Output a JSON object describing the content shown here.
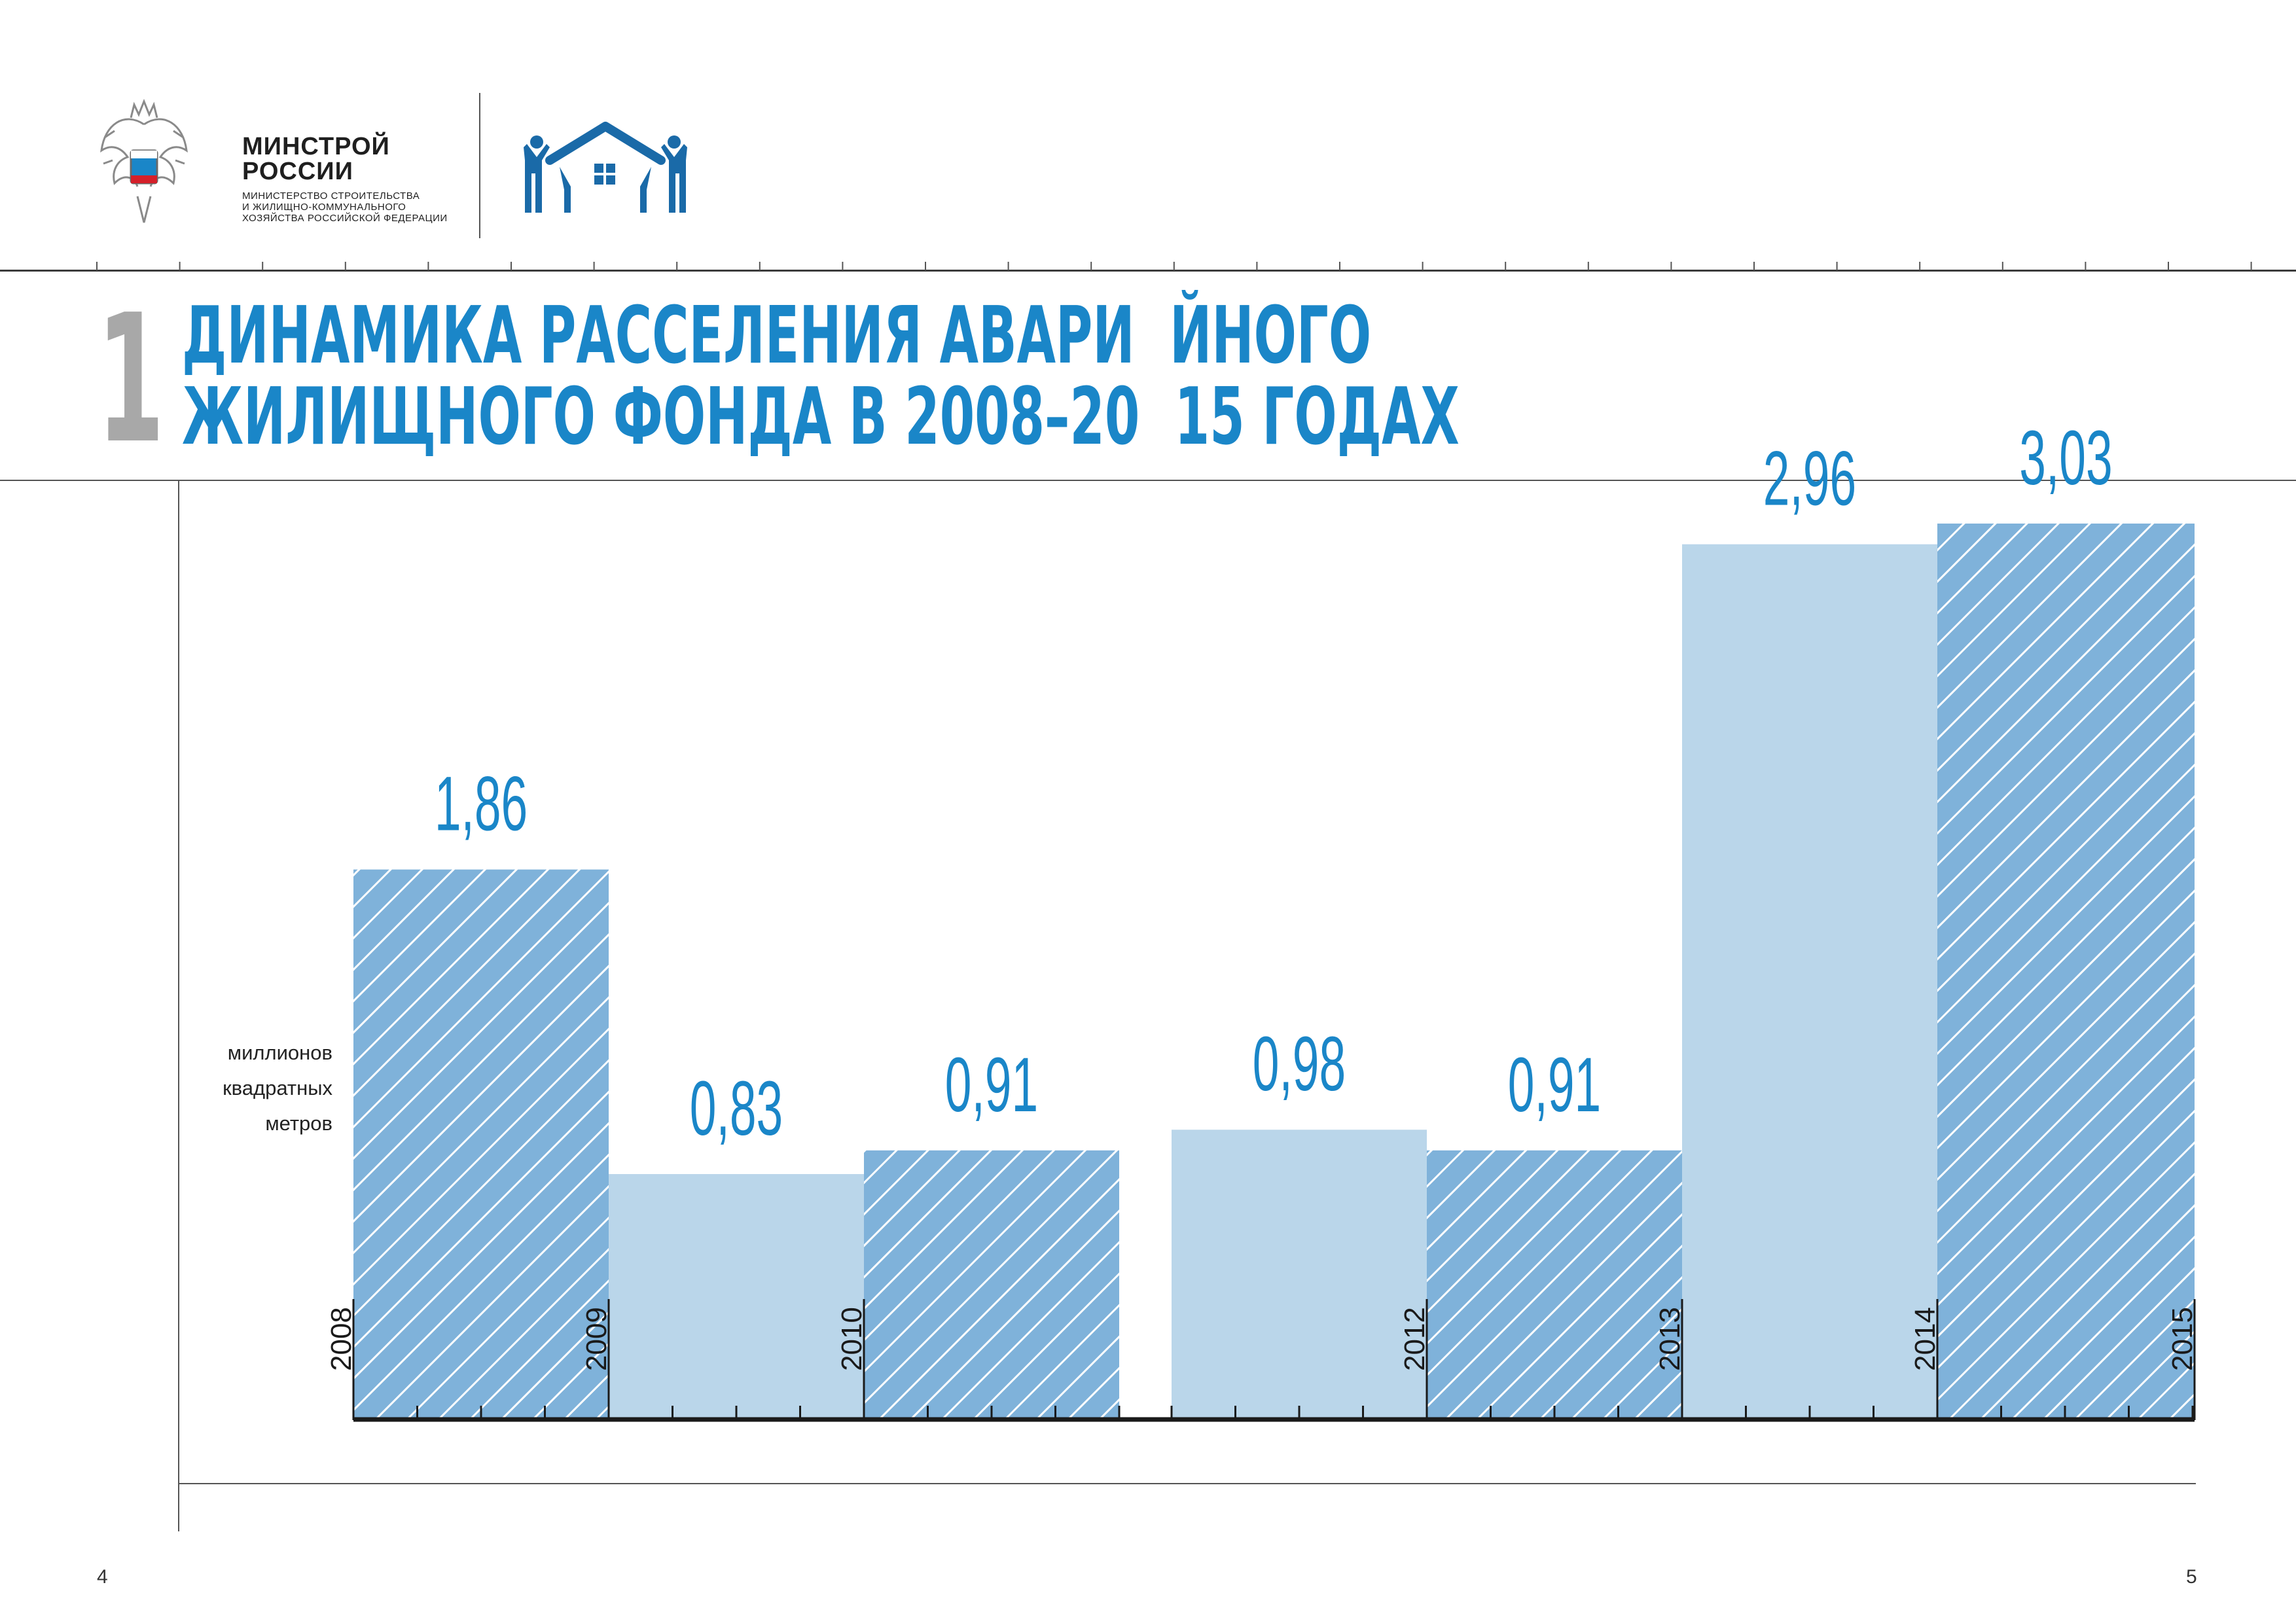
{
  "header": {
    "ministry_name_line1": "МИНСТРОЙ",
    "ministry_name_line2": "РОССИИ",
    "ministry_sub_line1": "МИНИСТЕРСТВО СТРОИТЕЛЬСТВА",
    "ministry_sub_line2": "И ЖИЛИЩНО-КОММУНАЛЬНОГО",
    "ministry_sub_line3": "ХОЗЯЙСТВА РОССИЙСКОЙ ФЕДЕРАЦИИ",
    "emblem_icon": "coat-of-arms-icon",
    "fund_logo_icon": "family-house-logo-icon"
  },
  "section_number": "1",
  "chart_data": {
    "type": "bar",
    "title_line1": "ДИНАМИКА РАССЕЛЕНИЯ АВАРИ  ЙНОГО",
    "title_line2": "ЖИЛИЩНОГО ФОНДА В 2008–20  15 ГОДАХ",
    "unit_label": [
      "миллионов",
      "квадратных",
      "метров"
    ],
    "x_tick_labels": [
      "2008",
      "2009",
      "2010",
      "2012",
      "2013",
      "2014",
      "2015"
    ],
    "bars": [
      {
        "label": "1,86",
        "value": 1.86,
        "hatched": true
      },
      {
        "label": "0,83",
        "value": 0.83,
        "hatched": false
      },
      {
        "label": "0,91",
        "value": 0.91,
        "hatched": true
      },
      {
        "label": "0,98",
        "value": 0.98,
        "hatched": false
      },
      {
        "label": "0,91",
        "value": 0.91,
        "hatched": true
      },
      {
        "label": "2,96",
        "value": 2.96,
        "hatched": false
      },
      {
        "label": "3,03",
        "value": 3.03,
        "hatched": true
      }
    ],
    "colors": {
      "bar_light": "#bad6ea",
      "bar_hatched": "#7fb2da",
      "label": "#1a86c8",
      "axis": "#1a1a1a"
    }
  },
  "footer": {
    "page_left": "4",
    "page_right": "5"
  }
}
